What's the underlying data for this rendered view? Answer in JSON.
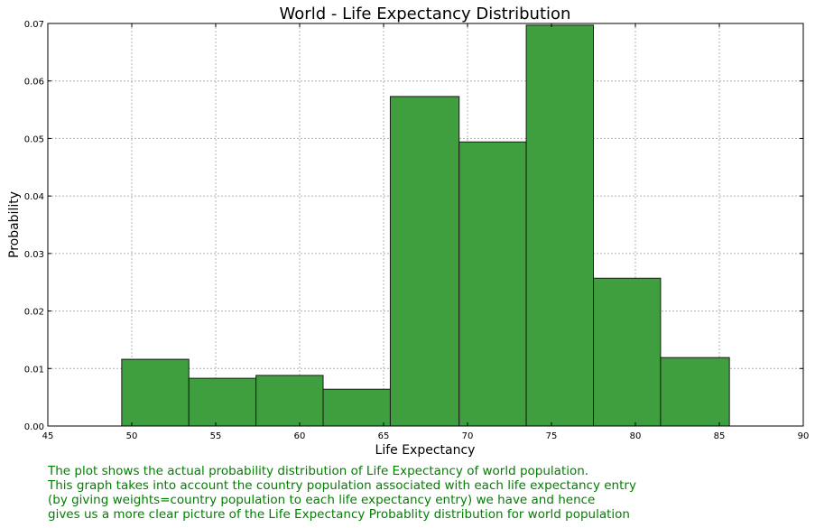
{
  "chart_data": {
    "type": "bar",
    "title": "World - Life Expectancy Distribution",
    "xlabel": "Life Expectancy",
    "ylabel": "Probability",
    "xlim": [
      45,
      90
    ],
    "ylim": [
      0,
      0.07
    ],
    "xticks": [
      "45",
      "50",
      "55",
      "60",
      "65",
      "70",
      "75",
      "80",
      "85",
      "90"
    ],
    "yticks": [
      "0.00",
      "0.01",
      "0.02",
      "0.03",
      "0.04",
      "0.05",
      "0.06",
      "0.07"
    ],
    "grid": true,
    "bar_color": "#3f9f3f",
    "bins": [
      {
        "x0": 49.4,
        "x1": 53.4,
        "value": 0.0116
      },
      {
        "x0": 53.4,
        "x1": 57.4,
        "value": 0.0083
      },
      {
        "x0": 57.4,
        "x1": 61.4,
        "value": 0.0088
      },
      {
        "x0": 61.4,
        "x1": 65.4,
        "value": 0.0064
      },
      {
        "x0": 65.4,
        "x1": 69.5,
        "value": 0.0573
      },
      {
        "x0": 69.5,
        "x1": 73.5,
        "value": 0.0494
      },
      {
        "x0": 73.5,
        "x1": 77.5,
        "value": 0.0697
      },
      {
        "x0": 77.5,
        "x1": 81.5,
        "value": 0.0257
      },
      {
        "x0": 81.5,
        "x1": 85.6,
        "value": 0.0119
      }
    ]
  },
  "caption": {
    "lines": [
      "The plot shows the actual probability distribution of Life Expectancy of world population.",
      "This graph takes into account the country population associated with each life expectancy entry",
      "(by giving weights=country population to each life expectancy entry) we have and hence",
      "gives us a more clear picture of the Life Expectancy Probablity distribution for world population"
    ]
  }
}
